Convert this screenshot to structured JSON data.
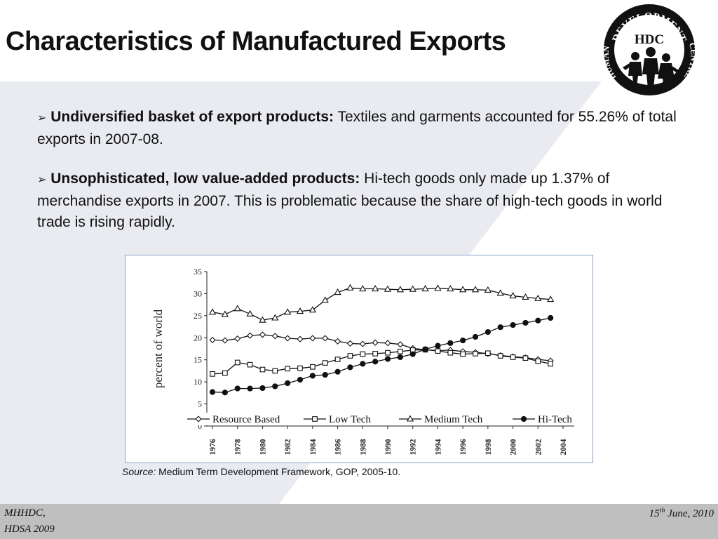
{
  "slide": {
    "title": "Characteristics of Manufactured Exports",
    "logo": {
      "top_text": "DEVELOPMENT",
      "left_text": "HUMAN",
      "right_text": "CENTRE",
      "center_text": "HDC"
    },
    "bullets": [
      {
        "lead": "Undiversified basket of export products:",
        "text": " Textiles and garments accounted for 55.26% of total exports in 2007-08."
      },
      {
        "lead": "Unsophisticated, low value-added products:",
        "text": " Hi-tech goods only made up 1.37% of merchandise exports in 2007. This is problematic because the share of high-tech goods in world trade is rising rapidly."
      }
    ],
    "source_label": "Source:",
    "source_text": " Medium Term Development Framework, GOP, 2005-10.",
    "footer": {
      "left_line1": "MHHDC,",
      "left_line2": "HDSA 2009",
      "date_day": "15",
      "date_sup": "th",
      "date_rest": "  June, 2010"
    }
  },
  "chart_data": {
    "type": "line",
    "ylabel": "percent of  world",
    "xlabel": "",
    "ylim": [
      0,
      35
    ],
    "yticks": [
      0,
      5,
      10,
      15,
      20,
      25,
      30,
      35
    ],
    "xticks": [
      "1976",
      "1978",
      "1980",
      "1982",
      "1984",
      "1986",
      "1988",
      "1990",
      "1992",
      "1994",
      "1996",
      "1998",
      "2000",
      "2002",
      "2004"
    ],
    "x": [
      1976,
      1977,
      1978,
      1979,
      1980,
      1981,
      1982,
      1983,
      1984,
      1985,
      1986,
      1987,
      1988,
      1989,
      1990,
      1991,
      1992,
      1993,
      1994,
      1995,
      1996,
      1997,
      1998,
      1999,
      2000,
      2001,
      2002,
      2003
    ],
    "legend_position": "bottom",
    "series": [
      {
        "name": "Resource Based",
        "marker": "diamond",
        "values": [
          19.5,
          19.4,
          19.8,
          20.5,
          20.7,
          20.4,
          19.9,
          19.7,
          19.9,
          19.9,
          19.2,
          18.7,
          18.6,
          18.9,
          18.8,
          18.5,
          17.6,
          17.3,
          17.1,
          17.2,
          16.9,
          16.7,
          16.4,
          16.0,
          15.7,
          15.5,
          15.1,
          14.8
        ]
      },
      {
        "name": "Low Tech",
        "marker": "square",
        "values": [
          11.8,
          12.0,
          14.4,
          13.9,
          12.8,
          12.5,
          13.0,
          13.1,
          13.4,
          14.3,
          15.1,
          15.9,
          16.3,
          16.4,
          16.6,
          16.9,
          17.2,
          17.3,
          17.0,
          16.6,
          16.3,
          16.4,
          16.5,
          15.9,
          15.6,
          15.4,
          14.7,
          14.1
        ]
      },
      {
        "name": "Medium Tech",
        "marker": "triangle",
        "values": [
          25.8,
          25.3,
          26.6,
          25.4,
          24.0,
          24.5,
          25.8,
          26.0,
          26.3,
          28.5,
          30.3,
          31.3,
          31.1,
          31.1,
          31.0,
          30.9,
          31.0,
          31.1,
          31.2,
          31.1,
          30.9,
          30.9,
          30.8,
          30.1,
          29.5,
          29.2,
          28.9,
          28.7
        ]
      },
      {
        "name": "Hi-Tech",
        "marker": "circle",
        "values": [
          7.7,
          7.6,
          8.5,
          8.5,
          8.6,
          9.0,
          9.7,
          10.5,
          11.4,
          11.6,
          12.3,
          13.3,
          14.1,
          14.6,
          15.2,
          15.6,
          16.3,
          17.4,
          18.2,
          18.8,
          19.4,
          20.2,
          21.3,
          22.4,
          22.9,
          23.4,
          23.9,
          24.5
        ]
      }
    ]
  }
}
